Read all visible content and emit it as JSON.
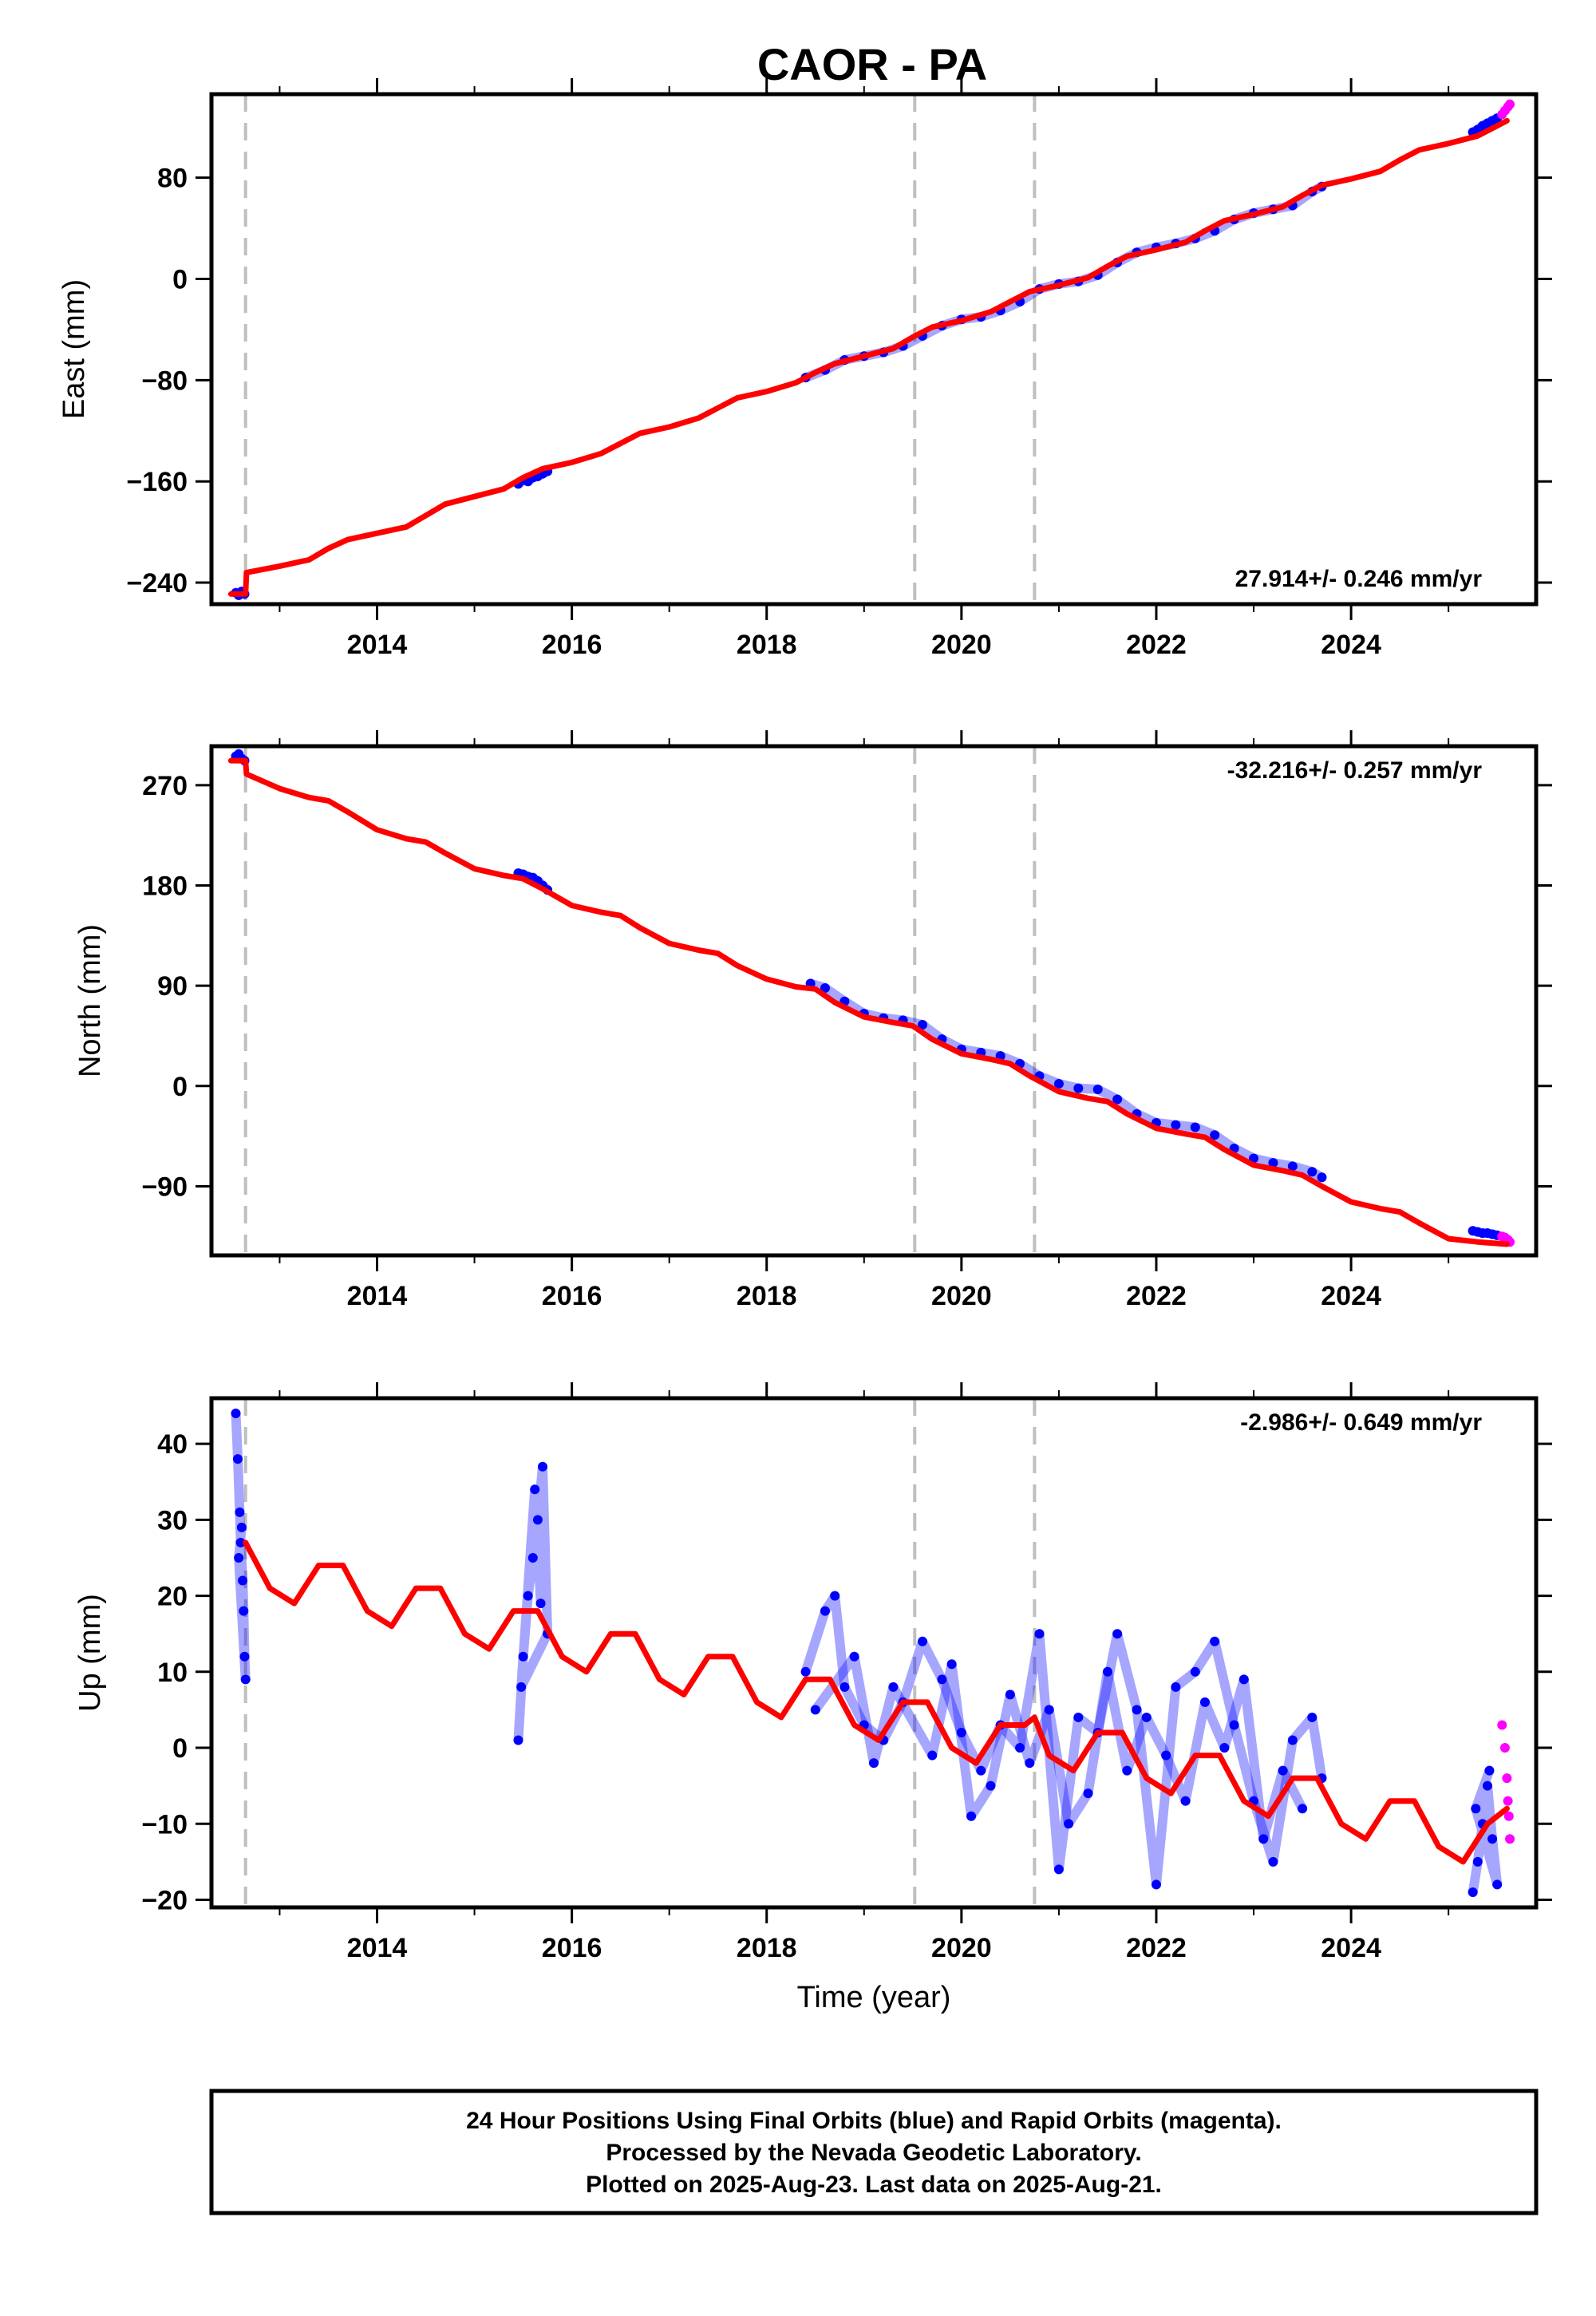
{
  "title": "CAOR - PA",
  "footer": {
    "line1": "24 Hour Positions Using Final Orbits (blue) and Rapid Orbits (magenta).",
    "line2": "Processed by the Nevada Geodetic Laboratory.",
    "line3": "Plotted on 2025-Aug-23. Last data on 2025-Aug-21."
  },
  "colors": {
    "final_orbits": "#0000ff",
    "rapid_orbits": "#ff00ff",
    "model_fit": "#ff0000",
    "event_lines": "#bfbfbf",
    "frame": "#000000"
  },
  "chart_data": [
    {
      "type": "scatter",
      "panel": "east",
      "ylabel": "East (mm)",
      "xlabel": "",
      "xlim": [
        2012.3,
        2025.9
      ],
      "ylim": [
        -257,
        146
      ],
      "xticks": [
        2014,
        2016,
        2018,
        2020,
        2022,
        2024
      ],
      "yticks": [
        -240,
        -160,
        -80,
        0,
        80
      ],
      "rate_text": "27.914+/- 0.246 mm/yr",
      "rate_position": "bottom-right",
      "event_lines_x": [
        2012.65,
        2019.52,
        2020.75
      ],
      "series": [
        {
          "role": "final",
          "segments": [
            {
              "x": [
                2012.55,
                2012.58,
                2012.61,
                2012.64
              ],
              "y": [
                -248,
                -250,
                -247,
                -249
              ]
            },
            {
              "x": [
                2015.45,
                2015.5,
                2015.55,
                2015.6,
                2015.65,
                2015.7,
                2015.75
              ],
              "y": [
                -162,
                -159,
                -160,
                -157,
                -156,
                -154,
                -152
              ]
            },
            {
              "x": [
                2018.4,
                2018.6,
                2018.8,
                2019.0,
                2019.2,
                2019.4,
                2019.6,
                2019.8,
                2020.0,
                2020.2,
                2020.4,
                2020.6,
                2020.8,
                2021.0,
                2021.2,
                2021.4,
                2021.6,
                2021.8,
                2022.0,
                2022.2,
                2022.4,
                2022.6,
                2022.8,
                2023.0,
                2023.2,
                2023.4,
                2023.6,
                2023.7
              ],
              "y": [
                -78,
                -72,
                -64,
                -61,
                -58,
                -53,
                -45,
                -37,
                -32,
                -30,
                -25,
                -18,
                -8,
                -4,
                -2,
                3,
                13,
                21,
                25,
                28,
                32,
                38,
                47,
                52,
                55,
                58,
                69,
                73
              ]
            },
            {
              "x": [
                2025.25,
                2025.3,
                2025.35,
                2025.4,
                2025.45,
                2025.5
              ],
              "y": [
                116,
                118,
                121,
                123,
                125,
                127
              ]
            }
          ]
        },
        {
          "role": "rapid",
          "segments": [
            {
              "x": [
                2025.55,
                2025.58,
                2025.61,
                2025.63
              ],
              "y": [
                130,
                133,
                136,
                138
              ]
            }
          ]
        },
        {
          "role": "model",
          "x": [
            2012.5,
            2012.65,
            2012.66,
            2013.0,
            2013.3,
            2013.5,
            2013.7,
            2014.0,
            2014.3,
            2014.5,
            2014.7,
            2015.0,
            2015.3,
            2015.5,
            2015.7,
            2016.0,
            2016.3,
            2016.5,
            2016.7,
            2017.0,
            2017.3,
            2017.5,
            2017.7,
            2018.0,
            2018.3,
            2018.5,
            2018.7,
            2019.0,
            2019.3,
            2019.5,
            2019.7,
            2020.0,
            2020.3,
            2020.5,
            2020.7,
            2021.0,
            2021.3,
            2021.5,
            2021.7,
            2022.0,
            2022.3,
            2022.5,
            2022.7,
            2023.0,
            2023.3,
            2023.5,
            2023.7,
            2024.0,
            2024.3,
            2024.5,
            2024.7,
            2025.0,
            2025.3,
            2025.6
          ],
          "y": [
            -249,
            -249,
            -232,
            -227,
            -222,
            -213,
            -206,
            -201,
            -196,
            -187,
            -178,
            -172,
            -166,
            -157,
            -150,
            -145,
            -138,
            -130,
            -122,
            -117,
            -110,
            -102,
            -94,
            -89,
            -82,
            -74,
            -67,
            -61,
            -55,
            -46,
            -38,
            -33,
            -26,
            -18,
            -10,
            -5,
            1,
            10,
            18,
            23,
            29,
            38,
            46,
            51,
            57,
            66,
            74,
            79,
            85,
            94,
            102,
            107,
            113,
            125
          ]
        }
      ]
    },
    {
      "type": "scatter",
      "panel": "north",
      "ylabel": "North (mm)",
      "xlabel": "",
      "xlim": [
        2012.3,
        2025.9
      ],
      "ylim": [
        -152,
        305
      ],
      "xticks": [
        2014,
        2016,
        2018,
        2020,
        2022,
        2024
      ],
      "yticks": [
        -90,
        0,
        90,
        180,
        270
      ],
      "rate_text": "-32.216+/- 0.257 mm/yr",
      "rate_position": "top-right",
      "event_lines_x": [
        2012.65,
        2019.52,
        2020.75
      ],
      "series": [
        {
          "role": "final",
          "segments": [
            {
              "x": [
                2012.55,
                2012.58,
                2012.61,
                2012.64
              ],
              "y": [
                296,
                298,
                294,
                292
              ]
            },
            {
              "x": [
                2015.45,
                2015.5,
                2015.55,
                2015.6,
                2015.65,
                2015.7,
                2015.75
              ],
              "y": [
                191,
                190,
                188,
                187,
                184,
                180,
                176
              ]
            },
            {
              "x": [
                2018.45,
                2018.6,
                2018.8,
                2019.0,
                2019.2,
                2019.4,
                2019.6,
                2019.8,
                2020.0,
                2020.2,
                2020.4,
                2020.6,
                2020.8,
                2021.0,
                2021.2,
                2021.4,
                2021.6,
                2021.8,
                2022.0,
                2022.2,
                2022.4,
                2022.6,
                2022.8,
                2023.0,
                2023.2,
                2023.4,
                2023.6,
                2023.7
              ],
              "y": [
                92,
                88,
                76,
                65,
                61,
                59,
                55,
                42,
                33,
                30,
                27,
                20,
                9,
                2,
                -2,
                -3,
                -12,
                -25,
                -33,
                -35,
                -37,
                -44,
                -56,
                -65,
                -69,
                -72,
                -77,
                -82
              ]
            },
            {
              "x": [
                2025.25,
                2025.3,
                2025.35,
                2025.4,
                2025.45,
                2025.5
              ],
              "y": [
                -130,
                -131,
                -132,
                -132,
                -133,
                -134
              ]
            }
          ]
        },
        {
          "role": "rapid",
          "segments": [
            {
              "x": [
                2025.55,
                2025.58,
                2025.61,
                2025.63
              ],
              "y": [
                -135,
                -136,
                -138,
                -140
              ]
            }
          ]
        },
        {
          "role": "model",
          "x": [
            2012.5,
            2012.65,
            2012.66,
            2013.0,
            2013.3,
            2013.5,
            2013.7,
            2014.0,
            2014.3,
            2014.5,
            2014.7,
            2015.0,
            2015.3,
            2015.5,
            2015.7,
            2016.0,
            2016.3,
            2016.5,
            2016.7,
            2017.0,
            2017.3,
            2017.5,
            2017.7,
            2018.0,
            2018.3,
            2018.5,
            2018.7,
            2019.0,
            2019.3,
            2019.5,
            2019.7,
            2020.0,
            2020.3,
            2020.5,
            2020.7,
            2021.0,
            2021.3,
            2021.5,
            2021.7,
            2022.0,
            2022.3,
            2022.5,
            2022.7,
            2023.0,
            2023.3,
            2023.5,
            2023.7,
            2024.0,
            2024.3,
            2024.5,
            2024.7,
            2025.0,
            2025.3,
            2025.6
          ],
          "y": [
            292,
            292,
            280,
            267,
            259,
            256,
            246,
            230,
            222,
            219,
            209,
            195,
            189,
            186,
            177,
            162,
            156,
            153,
            142,
            128,
            122,
            119,
            108,
            96,
            89,
            87,
            75,
            62,
            57,
            54,
            42,
            29,
            24,
            20,
            9,
            -5,
            -11,
            -14,
            -25,
            -38,
            -43,
            -46,
            -57,
            -71,
            -76,
            -80,
            -90,
            -104,
            -110,
            -113,
            -123,
            -137,
            -140,
            -142
          ]
        }
      ]
    },
    {
      "type": "scatter",
      "panel": "up",
      "ylabel": "Up (mm)",
      "xlabel": "Time (year)",
      "xlim": [
        2012.3,
        2025.9
      ],
      "ylim": [
        -21,
        46
      ],
      "xticks": [
        2014,
        2016,
        2018,
        2020,
        2022,
        2024
      ],
      "yticks": [
        -20,
        -10,
        0,
        10,
        20,
        30,
        40
      ],
      "rate_text": "-2.986+/- 0.649 mm/yr",
      "rate_position": "top-right",
      "event_lines_x": [
        2012.65,
        2019.52,
        2020.75
      ],
      "series": [
        {
          "role": "final",
          "segments": [
            {
              "x": [
                2012.55,
                2012.57,
                2012.59,
                2012.6,
                2012.62,
                2012.63,
                2012.64,
                2012.65,
                2012.58,
                2012.61
              ],
              "y": [
                44,
                38,
                31,
                27,
                22,
                18,
                12,
                9,
                25,
                29
              ]
            },
            {
              "x": [
                2015.45,
                2015.5,
                2015.55,
                2015.6,
                2015.65,
                2015.7,
                2015.75,
                2015.48,
                2015.62,
                2015.68
              ],
              "y": [
                1,
                12,
                20,
                25,
                30,
                37,
                15,
                8,
                34,
                19
              ]
            },
            {
              "x": [
                2018.4,
                2018.6,
                2018.7,
                2018.8,
                2019.0,
                2019.2,
                2019.4,
                2019.6,
                2019.8,
                2020.0,
                2020.2,
                2020.4,
                2020.6,
                2020.8,
                2021.0,
                2021.2,
                2021.4,
                2021.6,
                2021.8,
                2022.0,
                2022.2,
                2022.4,
                2022.6,
                2022.8,
                2023.0,
                2023.2,
                2023.4,
                2023.6,
                2023.7
              ],
              "y": [
                10,
                18,
                20,
                8,
                3,
                1,
                6,
                14,
                9,
                2,
                -3,
                3,
                0,
                15,
                -16,
                4,
                2,
                15,
                5,
                -18,
                8,
                10,
                14,
                3,
                -7,
                -15,
                1,
                4,
                -4
              ]
            },
            {
              "x": [
                2018.5,
                2018.9,
                2019.1,
                2019.3,
                2019.7,
                2019.9,
                2020.1,
                2020.3,
                2020.5,
                2020.7,
                2020.9,
                2021.1,
                2021.3,
                2021.5,
                2021.7,
                2021.9,
                2022.1,
                2022.3,
                2022.5,
                2022.7,
                2022.9,
                2023.1,
                2023.3,
                2023.5
              ],
              "y": [
                5,
                12,
                -2,
                8,
                -1,
                11,
                -9,
                -5,
                7,
                -2,
                5,
                -10,
                -6,
                10,
                -3,
                4,
                -1,
                -7,
                6,
                0,
                9,
                -12,
                -3,
                -8
              ]
            },
            {
              "x": [
                2025.25,
                2025.3,
                2025.35,
                2025.4,
                2025.45,
                2025.5,
                2025.28,
                2025.42
              ],
              "y": [
                -19,
                -15,
                -10,
                -5,
                -12,
                -18,
                -8,
                -3
              ]
            }
          ]
        },
        {
          "role": "rapid",
          "segments": [
            {
              "x": [
                2025.55,
                2025.58,
                2025.6,
                2025.61,
                2025.62,
                2025.63
              ],
              "y": [
                3,
                0,
                -4,
                -7,
                -9,
                -12
              ]
            }
          ]
        },
        {
          "role": "model",
          "x": [
            2012.65,
            2012.9,
            2013.15,
            2013.4,
            2013.65,
            2013.9,
            2014.15,
            2014.4,
            2014.65,
            2014.9,
            2015.15,
            2015.4,
            2015.65,
            2015.9,
            2016.15,
            2016.4,
            2016.65,
            2016.9,
            2017.15,
            2017.4,
            2017.65,
            2017.9,
            2018.15,
            2018.4,
            2018.65,
            2018.9,
            2019.15,
            2019.4,
            2019.65,
            2019.9,
            2020.15,
            2020.4,
            2020.65,
            2020.75,
            2020.9,
            2021.15,
            2021.4,
            2021.65,
            2021.9,
            2022.15,
            2022.4,
            2022.65,
            2022.9,
            2023.15,
            2023.4,
            2023.65,
            2023.9,
            2024.15,
            2024.4,
            2024.65,
            2024.9,
            2025.15,
            2025.4,
            2025.6
          ],
          "y": [
            27,
            21,
            19,
            24,
            24,
            18,
            16,
            21,
            21,
            15,
            13,
            18,
            18,
            12,
            10,
            15,
            15,
            9,
            7,
            12,
            12,
            6,
            4,
            9,
            9,
            3,
            1,
            6,
            6,
            0,
            -2,
            3,
            3,
            4,
            -1,
            -3,
            2,
            2,
            -4,
            -6,
            -1,
            -1,
            -7,
            -9,
            -4,
            -4,
            -10,
            -12,
            -7,
            -7,
            -13,
            -15,
            -10,
            -8
          ]
        }
      ]
    }
  ]
}
